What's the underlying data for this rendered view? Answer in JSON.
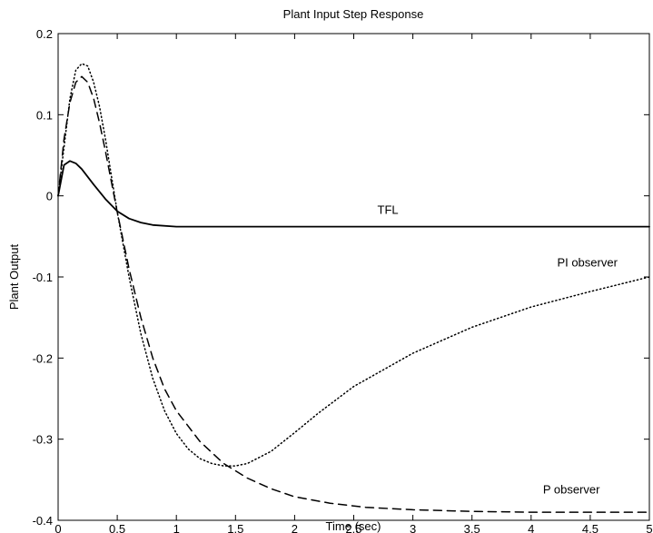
{
  "chart_data": {
    "type": "line",
    "title": "Plant Input Step Response",
    "xlabel": "Time (sec)",
    "ylabel": "Plant Output",
    "xlim": [
      0,
      5
    ],
    "ylim": [
      -0.4,
      0.2
    ],
    "xticks": [
      0,
      0.5,
      1,
      1.5,
      2,
      2.5,
      3,
      3.5,
      4,
      4.5,
      5
    ],
    "xtick_labels": [
      "0",
      "0.5",
      "1",
      "1.5",
      "2",
      "2.5",
      "3",
      "3.5",
      "4",
      "4.5",
      "5"
    ],
    "yticks": [
      -0.4,
      -0.3,
      -0.2,
      -0.1,
      0,
      0.1,
      0.2
    ],
    "ytick_labels": [
      "-0.4",
      "-0.3",
      "-0.2",
      "-0.1",
      "0",
      "0.1",
      "0.2"
    ],
    "grid": false,
    "legend": "none",
    "series": [
      {
        "name": "TFL",
        "style": "solid",
        "color": "#000000",
        "x": [
          0,
          0.05,
          0.1,
          0.15,
          0.2,
          0.3,
          0.4,
          0.5,
          0.6,
          0.7,
          0.8,
          1.0,
          1.5,
          2.0,
          3.0,
          4.0,
          5.0
        ],
        "y": [
          0.0,
          0.038,
          0.043,
          0.04,
          0.033,
          0.014,
          -0.004,
          -0.019,
          -0.028,
          -0.033,
          -0.036,
          -0.038,
          -0.038,
          -0.038,
          -0.038,
          -0.038,
          -0.038
        ]
      },
      {
        "name": "PI observer",
        "style": "dotted",
        "color": "#000000",
        "x": [
          0,
          0.05,
          0.1,
          0.15,
          0.2,
          0.25,
          0.3,
          0.35,
          0.4,
          0.5,
          0.6,
          0.7,
          0.8,
          0.9,
          1.0,
          1.1,
          1.2,
          1.3,
          1.4,
          1.5,
          1.6,
          1.8,
          2.0,
          2.2,
          2.5,
          3.0,
          3.5,
          4.0,
          4.5,
          5.0
        ],
        "y": [
          0.0,
          0.06,
          0.12,
          0.155,
          0.163,
          0.16,
          0.14,
          0.11,
          0.07,
          -0.02,
          -0.1,
          -0.17,
          -0.225,
          -0.265,
          -0.293,
          -0.312,
          -0.324,
          -0.33,
          -0.333,
          -0.333,
          -0.33,
          -0.315,
          -0.292,
          -0.268,
          -0.235,
          -0.194,
          -0.162,
          -0.137,
          -0.118,
          -0.1
        ]
      },
      {
        "name": "P observer",
        "style": "dashed",
        "color": "#000000",
        "x": [
          0,
          0.05,
          0.1,
          0.15,
          0.2,
          0.25,
          0.3,
          0.35,
          0.4,
          0.5,
          0.6,
          0.7,
          0.8,
          0.9,
          1.0,
          1.2,
          1.4,
          1.6,
          1.8,
          2.0,
          2.3,
          2.6,
          3.0,
          3.5,
          4.0,
          4.5,
          5.0
        ],
        "y": [
          0.0,
          0.07,
          0.115,
          0.14,
          0.147,
          0.14,
          0.12,
          0.09,
          0.055,
          -0.02,
          -0.09,
          -0.15,
          -0.2,
          -0.238,
          -0.265,
          -0.303,
          -0.33,
          -0.348,
          -0.361,
          -0.371,
          -0.379,
          -0.384,
          -0.387,
          -0.389,
          -0.39,
          -0.39,
          -0.39
        ]
      }
    ],
    "annotations": [
      {
        "text": "TFL",
        "x": 2.7,
        "y": -0.022
      },
      {
        "text": "PI observer",
        "x": 4.22,
        "y": -0.087
      },
      {
        "text": "P observer",
        "x": 4.1,
        "y": -0.367
      }
    ]
  }
}
